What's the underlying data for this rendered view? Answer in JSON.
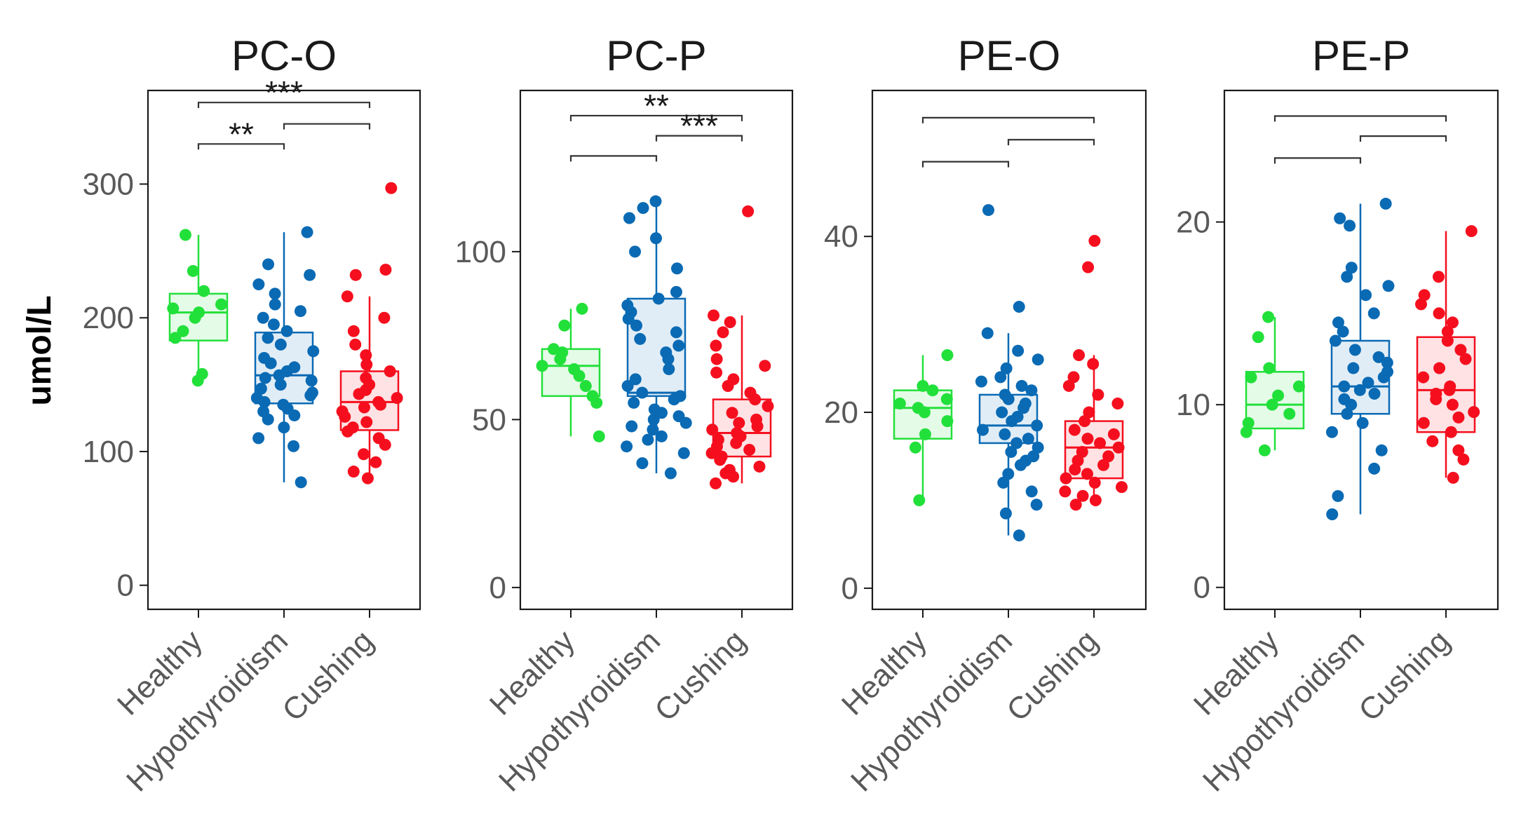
{
  "figure": {
    "ylabel": "umol/L",
    "colors": {
      "Healthy": "#22e03a",
      "Hypothyroidism": "#0a6ab4",
      "Cushing": "#f50f1e",
      "frame": "#1a1a1a",
      "bracket": "#333333"
    }
  },
  "chart_data": [
    {
      "type": "boxplot",
      "title": "PC-O",
      "ylabel": "umol/L",
      "ylim": [
        -18,
        370
      ],
      "yticks": [
        0,
        100,
        200,
        300
      ],
      "categories": [
        "Healthy",
        "Hypothyroidism",
        "Cushing"
      ],
      "boxes": [
        {
          "name": "Healthy",
          "whisker_low": 153,
          "q1": 183,
          "median": 204,
          "q3": 218,
          "whisker_high": 262,
          "points": [
            153,
            158,
            185,
            190,
            200,
            204,
            207,
            210,
            220,
            235,
            262
          ]
        },
        {
          "name": "Hypothyroidism",
          "whisker_low": 77,
          "q1": 136,
          "median": 157,
          "q3": 189,
          "whisker_high": 264,
          "points": [
            77,
            104,
            110,
            118,
            124,
            127,
            130,
            132,
            135,
            137,
            140,
            142,
            144,
            147,
            150,
            153,
            155,
            157,
            160,
            163,
            166,
            170,
            175,
            180,
            185,
            190,
            195,
            200,
            205,
            210,
            218,
            225,
            232,
            240,
            264
          ]
        },
        {
          "name": "Cushing",
          "whisker_low": 80,
          "q1": 116,
          "median": 137,
          "q3": 160,
          "whisker_high": 216,
          "points": [
            80,
            85,
            92,
            98,
            105,
            110,
            115,
            118,
            122,
            126,
            130,
            133,
            135,
            137,
            140,
            143,
            146,
            150,
            155,
            160,
            165,
            172,
            180,
            190,
            200,
            216,
            232,
            236,
            297
          ]
        }
      ],
      "brackets": [
        {
          "from": "Healthy",
          "to": "Cushing",
          "y": 361,
          "label": "***"
        },
        {
          "from": "Healthy",
          "to": "Hypothyroidism",
          "y": 330,
          "label": "**"
        },
        {
          "from": "Hypothyroidism",
          "to": "Cushing",
          "y": 345,
          "label": ""
        }
      ]
    },
    {
      "type": "boxplot",
      "title": "PC-P",
      "ylim": [
        -6.5,
        148
      ],
      "yticks": [
        0,
        50,
        100
      ],
      "categories": [
        "Healthy",
        "Hypothyroidism",
        "Cushing"
      ],
      "boxes": [
        {
          "name": "Healthy",
          "whisker_low": 45,
          "q1": 57,
          "median": 66,
          "q3": 71,
          "whisker_high": 83,
          "points": [
            45,
            55,
            57,
            60,
            63,
            65,
            66,
            68,
            70,
            71,
            78,
            83
          ]
        },
        {
          "name": "Hypothyroidism",
          "whisker_low": 34,
          "q1": 57,
          "median": 58,
          "q3": 86,
          "whisker_high": 115,
          "points": [
            34,
            37,
            40,
            42,
            44,
            45,
            47,
            48,
            49,
            50,
            51,
            52,
            53,
            55,
            56,
            57,
            58,
            60,
            62,
            65,
            68,
            70,
            72,
            74,
            76,
            78,
            80,
            82,
            84,
            86,
            88,
            95,
            100,
            104,
            110,
            113,
            115
          ]
        },
        {
          "name": "Cushing",
          "whisker_low": 31,
          "q1": 39,
          "median": 46,
          "q3": 56,
          "whisker_high": 81,
          "points": [
            31,
            33,
            34,
            35,
            36,
            38,
            39,
            40,
            41,
            42,
            43,
            44,
            45,
            46,
            47,
            48,
            49,
            50,
            52,
            54,
            56,
            58,
            60,
            62,
            64,
            66,
            68,
            72,
            76,
            79,
            81,
            112
          ]
        }
      ],
      "brackets": [
        {
          "from": "Healthy",
          "to": "Cushing",
          "y": 140.5,
          "label": "**"
        },
        {
          "from": "Healthy",
          "to": "Hypothyroidism",
          "y": 128.5,
          "label": ""
        },
        {
          "from": "Hypothyroidism",
          "to": "Cushing",
          "y": 134.5,
          "label": "***"
        }
      ]
    },
    {
      "type": "boxplot",
      "title": "PE-O",
      "ylim": [
        -2.4,
        56.6
      ],
      "yticks": [
        0,
        20,
        40
      ],
      "categories": [
        "Healthy",
        "Hypothyroidism",
        "Cushing"
      ],
      "boxes": [
        {
          "name": "Healthy",
          "whisker_low": 10,
          "q1": 17,
          "median": 20.5,
          "q3": 22.5,
          "whisker_high": 26.5,
          "points": [
            10,
            16,
            17.5,
            19,
            20,
            20.5,
            21,
            21.5,
            22.5,
            23,
            26.5
          ]
        },
        {
          "name": "Hypothyroidism",
          "whisker_low": 6,
          "q1": 16.5,
          "median": 18.5,
          "q3": 22,
          "whisker_high": 29,
          "points": [
            6,
            8.5,
            9.5,
            11,
            12,
            13,
            14,
            14.5,
            15,
            15.5,
            16,
            16.5,
            17,
            17.5,
            18,
            18.5,
            19,
            19.5,
            20,
            20.5,
            21,
            21.5,
            22,
            22.5,
            23,
            23.5,
            24,
            25,
            26,
            27,
            29,
            32,
            43
          ]
        },
        {
          "name": "Cushing",
          "whisker_low": 9.5,
          "q1": 12.5,
          "median": 16,
          "q3": 19,
          "whisker_high": 26.5,
          "points": [
            9.5,
            10,
            10.5,
            11,
            11.5,
            12,
            12.5,
            13,
            13.5,
            14,
            14.5,
            15,
            15.5,
            16,
            16.5,
            17,
            17.5,
            18,
            19,
            20,
            21,
            22,
            23,
            24,
            25.5,
            26.5,
            36.5,
            39.5
          ]
        }
      ],
      "brackets": [
        {
          "from": "Healthy",
          "to": "Cushing",
          "y": 53.5,
          "label": ""
        },
        {
          "from": "Healthy",
          "to": "Hypothyroidism",
          "y": 48.5,
          "label": ""
        },
        {
          "from": "Hypothyroidism",
          "to": "Cushing",
          "y": 51,
          "label": ""
        }
      ]
    },
    {
      "type": "boxplot",
      "title": "PE-P",
      "ylim": [
        -1.2,
        27.2
      ],
      "yticks": [
        0,
        10,
        20
      ],
      "categories": [
        "Healthy",
        "Hypothyroidism",
        "Cushing"
      ],
      "boxes": [
        {
          "name": "Healthy",
          "whisker_low": 7.5,
          "q1": 8.7,
          "median": 10,
          "q3": 11.8,
          "whisker_high": 14.8,
          "points": [
            7.5,
            8.5,
            9,
            9.5,
            10,
            10.5,
            11,
            11.5,
            12,
            13.7,
            14.8
          ]
        },
        {
          "name": "Hypothyroidism",
          "whisker_low": 4,
          "q1": 9.5,
          "median": 11,
          "q3": 13.5,
          "whisker_high": 21,
          "points": [
            4,
            5,
            6.5,
            7.5,
            8.5,
            9,
            9.5,
            10,
            10.3,
            10.6,
            10.8,
            11,
            11.2,
            11.5,
            11.8,
            12,
            12.3,
            12.6,
            13,
            13.5,
            14,
            14.5,
            15,
            16,
            16.5,
            17,
            17.5,
            19.8,
            20.2,
            21
          ]
        },
        {
          "name": "Cushing",
          "whisker_low": 6,
          "q1": 8.5,
          "median": 10.8,
          "q3": 13.7,
          "whisker_high": 19.5,
          "points": [
            6,
            7,
            7.5,
            8,
            8.5,
            9,
            9.3,
            9.6,
            10,
            10.3,
            10.6,
            10.8,
            11,
            11.5,
            12,
            12.5,
            13,
            13.5,
            14,
            14.5,
            15,
            15.5,
            16,
            17,
            19.5
          ]
        }
      ],
      "brackets": [
        {
          "from": "Healthy",
          "to": "Cushing",
          "y": 25.8,
          "label": ""
        },
        {
          "from": "Healthy",
          "to": "Hypothyroidism",
          "y": 23.5,
          "label": ""
        },
        {
          "from": "Hypothyroidism",
          "to": "Cushing",
          "y": 24.7,
          "label": ""
        }
      ]
    }
  ]
}
